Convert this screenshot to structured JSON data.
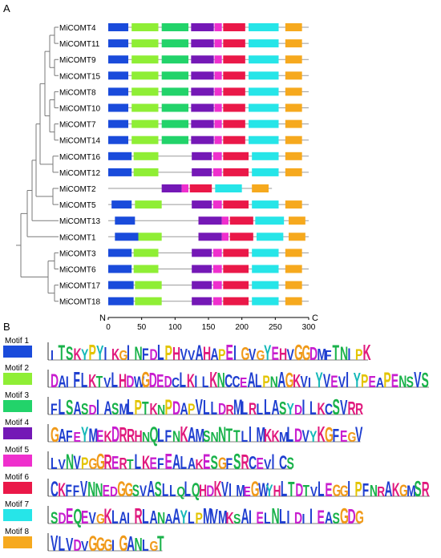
{
  "panel_a": {
    "label": "A",
    "genes": [
      "MiCOMT4",
      "MiCOMT11",
      "MiCOMT9",
      "MiCOMT15",
      "MiCOMT8",
      "MiCOMT10",
      "MiCOMT7",
      "MiCOMT14",
      "MiCOMT16",
      "MiCOMT12",
      "MiCOMT2",
      "MiCOMT5",
      "MiCOMT13",
      "MiCOMT1",
      "MiCOMT3",
      "MiCOMT6",
      "MiCOMT17",
      "MiCOMT18"
    ],
    "axis": {
      "n_label": "N",
      "c_label": "C",
      "ticks": [
        0,
        50,
        100,
        150,
        200,
        250,
        300
      ],
      "max": 300
    },
    "proteins": [
      {
        "len": 300,
        "motifs": [
          [
            1,
            0,
            30
          ],
          [
            2,
            35,
            75
          ],
          [
            3,
            80,
            120
          ],
          [
            4,
            124,
            158
          ],
          [
            5,
            159,
            170
          ],
          [
            6,
            172,
            205
          ],
          [
            7,
            210,
            255
          ],
          [
            8,
            265,
            290
          ]
        ]
      },
      {
        "len": 300,
        "motifs": [
          [
            1,
            0,
            30
          ],
          [
            2,
            35,
            75
          ],
          [
            3,
            80,
            120
          ],
          [
            4,
            124,
            158
          ],
          [
            5,
            159,
            170
          ],
          [
            6,
            172,
            205
          ],
          [
            7,
            210,
            255
          ],
          [
            8,
            265,
            290
          ]
        ]
      },
      {
        "len": 300,
        "motifs": [
          [
            1,
            0,
            30
          ],
          [
            2,
            35,
            75
          ],
          [
            3,
            80,
            120
          ],
          [
            4,
            124,
            158
          ],
          [
            5,
            159,
            170
          ],
          [
            6,
            172,
            205
          ],
          [
            7,
            210,
            255
          ],
          [
            8,
            265,
            290
          ]
        ]
      },
      {
        "len": 300,
        "motifs": [
          [
            1,
            0,
            30
          ],
          [
            2,
            35,
            75
          ],
          [
            3,
            80,
            120
          ],
          [
            4,
            124,
            158
          ],
          [
            5,
            159,
            170
          ],
          [
            6,
            172,
            205
          ],
          [
            7,
            210,
            255
          ],
          [
            8,
            265,
            290
          ]
        ]
      },
      {
        "len": 300,
        "motifs": [
          [
            1,
            0,
            30
          ],
          [
            2,
            35,
            75
          ],
          [
            3,
            80,
            120
          ],
          [
            4,
            124,
            158
          ],
          [
            5,
            159,
            170
          ],
          [
            6,
            172,
            205
          ],
          [
            7,
            210,
            255
          ],
          [
            8,
            265,
            290
          ]
        ]
      },
      {
        "len": 300,
        "motifs": [
          [
            1,
            0,
            30
          ],
          [
            2,
            35,
            75
          ],
          [
            3,
            80,
            120
          ],
          [
            4,
            124,
            158
          ],
          [
            5,
            159,
            170
          ],
          [
            6,
            172,
            205
          ],
          [
            7,
            210,
            255
          ],
          [
            8,
            265,
            290
          ]
        ]
      },
      {
        "len": 300,
        "motifs": [
          [
            1,
            0,
            30
          ],
          [
            2,
            35,
            75
          ],
          [
            3,
            80,
            120
          ],
          [
            4,
            124,
            158
          ],
          [
            5,
            159,
            170
          ],
          [
            6,
            172,
            205
          ],
          [
            7,
            210,
            255
          ],
          [
            8,
            265,
            290
          ]
        ]
      },
      {
        "len": 300,
        "motifs": [
          [
            1,
            0,
            30
          ],
          [
            2,
            35,
            75
          ],
          [
            3,
            80,
            120
          ],
          [
            4,
            124,
            158
          ],
          [
            5,
            159,
            170
          ],
          [
            6,
            172,
            205
          ],
          [
            7,
            210,
            255
          ],
          [
            8,
            265,
            290
          ]
        ]
      },
      {
        "len": 300,
        "motifs": [
          [
            1,
            0,
            35
          ],
          [
            2,
            38,
            75
          ],
          [
            4,
            125,
            155
          ],
          [
            5,
            157,
            170
          ],
          [
            6,
            172,
            210
          ],
          [
            7,
            215,
            255
          ],
          [
            8,
            265,
            290
          ]
        ]
      },
      {
        "len": 300,
        "motifs": [
          [
            1,
            0,
            35
          ],
          [
            2,
            38,
            75
          ],
          [
            4,
            125,
            155
          ],
          [
            5,
            157,
            170
          ],
          [
            6,
            172,
            210
          ],
          [
            7,
            215,
            255
          ],
          [
            8,
            265,
            290
          ]
        ]
      },
      {
        "len": 245,
        "motifs": [
          [
            4,
            80,
            110
          ],
          [
            5,
            110,
            120
          ],
          [
            6,
            122,
            155
          ],
          [
            7,
            160,
            200
          ],
          [
            8,
            215,
            240
          ]
        ]
      },
      {
        "len": 300,
        "motifs": [
          [
            1,
            5,
            35
          ],
          [
            2,
            40,
            80
          ],
          [
            4,
            125,
            155
          ],
          [
            5,
            157,
            170
          ],
          [
            6,
            172,
            210
          ],
          [
            7,
            215,
            255
          ],
          [
            8,
            265,
            290
          ]
        ]
      },
      {
        "len": 300,
        "motifs": [
          [
            1,
            10,
            40
          ],
          [
            4,
            135,
            170
          ],
          [
            5,
            170,
            180
          ],
          [
            6,
            182,
            217
          ],
          [
            7,
            220,
            263
          ],
          [
            8,
            270,
            295
          ]
        ]
      },
      {
        "len": 300,
        "motifs": [
          [
            1,
            10,
            45
          ],
          [
            2,
            45,
            80
          ],
          [
            4,
            135,
            170
          ],
          [
            5,
            170,
            180
          ],
          [
            6,
            182,
            217
          ],
          [
            7,
            222,
            262
          ],
          [
            8,
            270,
            295
          ]
        ]
      },
      {
        "len": 300,
        "motifs": [
          [
            1,
            0,
            35
          ],
          [
            2,
            38,
            75
          ],
          [
            4,
            125,
            155
          ],
          [
            5,
            157,
            170
          ],
          [
            6,
            172,
            210
          ],
          [
            7,
            215,
            255
          ],
          [
            8,
            265,
            290
          ]
        ]
      },
      {
        "len": 300,
        "motifs": [
          [
            1,
            0,
            35
          ],
          [
            2,
            38,
            75
          ],
          [
            4,
            125,
            155
          ],
          [
            5,
            157,
            170
          ],
          [
            6,
            172,
            210
          ],
          [
            7,
            215,
            255
          ],
          [
            8,
            265,
            290
          ]
        ]
      },
      {
        "len": 300,
        "motifs": [
          [
            1,
            0,
            38
          ],
          [
            2,
            40,
            80
          ],
          [
            4,
            125,
            155
          ],
          [
            5,
            157,
            170
          ],
          [
            6,
            172,
            210
          ],
          [
            7,
            215,
            255
          ],
          [
            8,
            265,
            290
          ]
        ]
      },
      {
        "len": 300,
        "motifs": [
          [
            1,
            0,
            38
          ],
          [
            2,
            40,
            80
          ],
          [
            4,
            125,
            155
          ],
          [
            5,
            157,
            170
          ],
          [
            6,
            172,
            210
          ],
          [
            7,
            215,
            255
          ],
          [
            8,
            265,
            290
          ]
        ]
      }
    ]
  },
  "panel_b": {
    "label": "B",
    "motifs": [
      {
        "label": "Motif 1",
        "color": "#1a4bdb",
        "seq": "ITSKYPYIKGINFDLPHVVAHAPEIGVGYEHVGGDMFTNIPK"
      },
      {
        "label": "Motif 2",
        "color": "#8fee35",
        "seq": "DAIFLKTVLHDWGDEDCLKILKNCCEALPNAGKVIYVEVIYPEAPENSVS"
      },
      {
        "label": "Motif 3",
        "color": "#22d36a",
        "seq": "FLSASDIASMLPTKNPDAPVLLDRMLRLLASYDILKCSVRR"
      },
      {
        "label": "Motif 4",
        "color": "#7418b6",
        "seq": "GAFEYMEKDRRHNQLFNKAMSNNTTLIMKKMLDVYKGFEGV"
      },
      {
        "label": "Motif 5",
        "color": "#ef2fcd",
        "seq": "LVNVPGGRERTLKEFEALAKESGFSRCEVICS"
      },
      {
        "label": "Motif 6",
        "color": "#ea1848",
        "seq": "CKFFVNNEDGGSVASLLQLQHDKVIMEGWYHLTDTVLEGGIPFNRAKGMSR"
      },
      {
        "label": "Motif 7",
        "color": "#26e5e8",
        "seq": "SDEQEVGKLAIRLANAAYLPMVMKSAIELNLIDIIEASGDG"
      },
      {
        "label": "Motif 8",
        "color": "#f6a91e",
        "seq": "VLVDVGGGIGANLGT"
      }
    ]
  }
}
